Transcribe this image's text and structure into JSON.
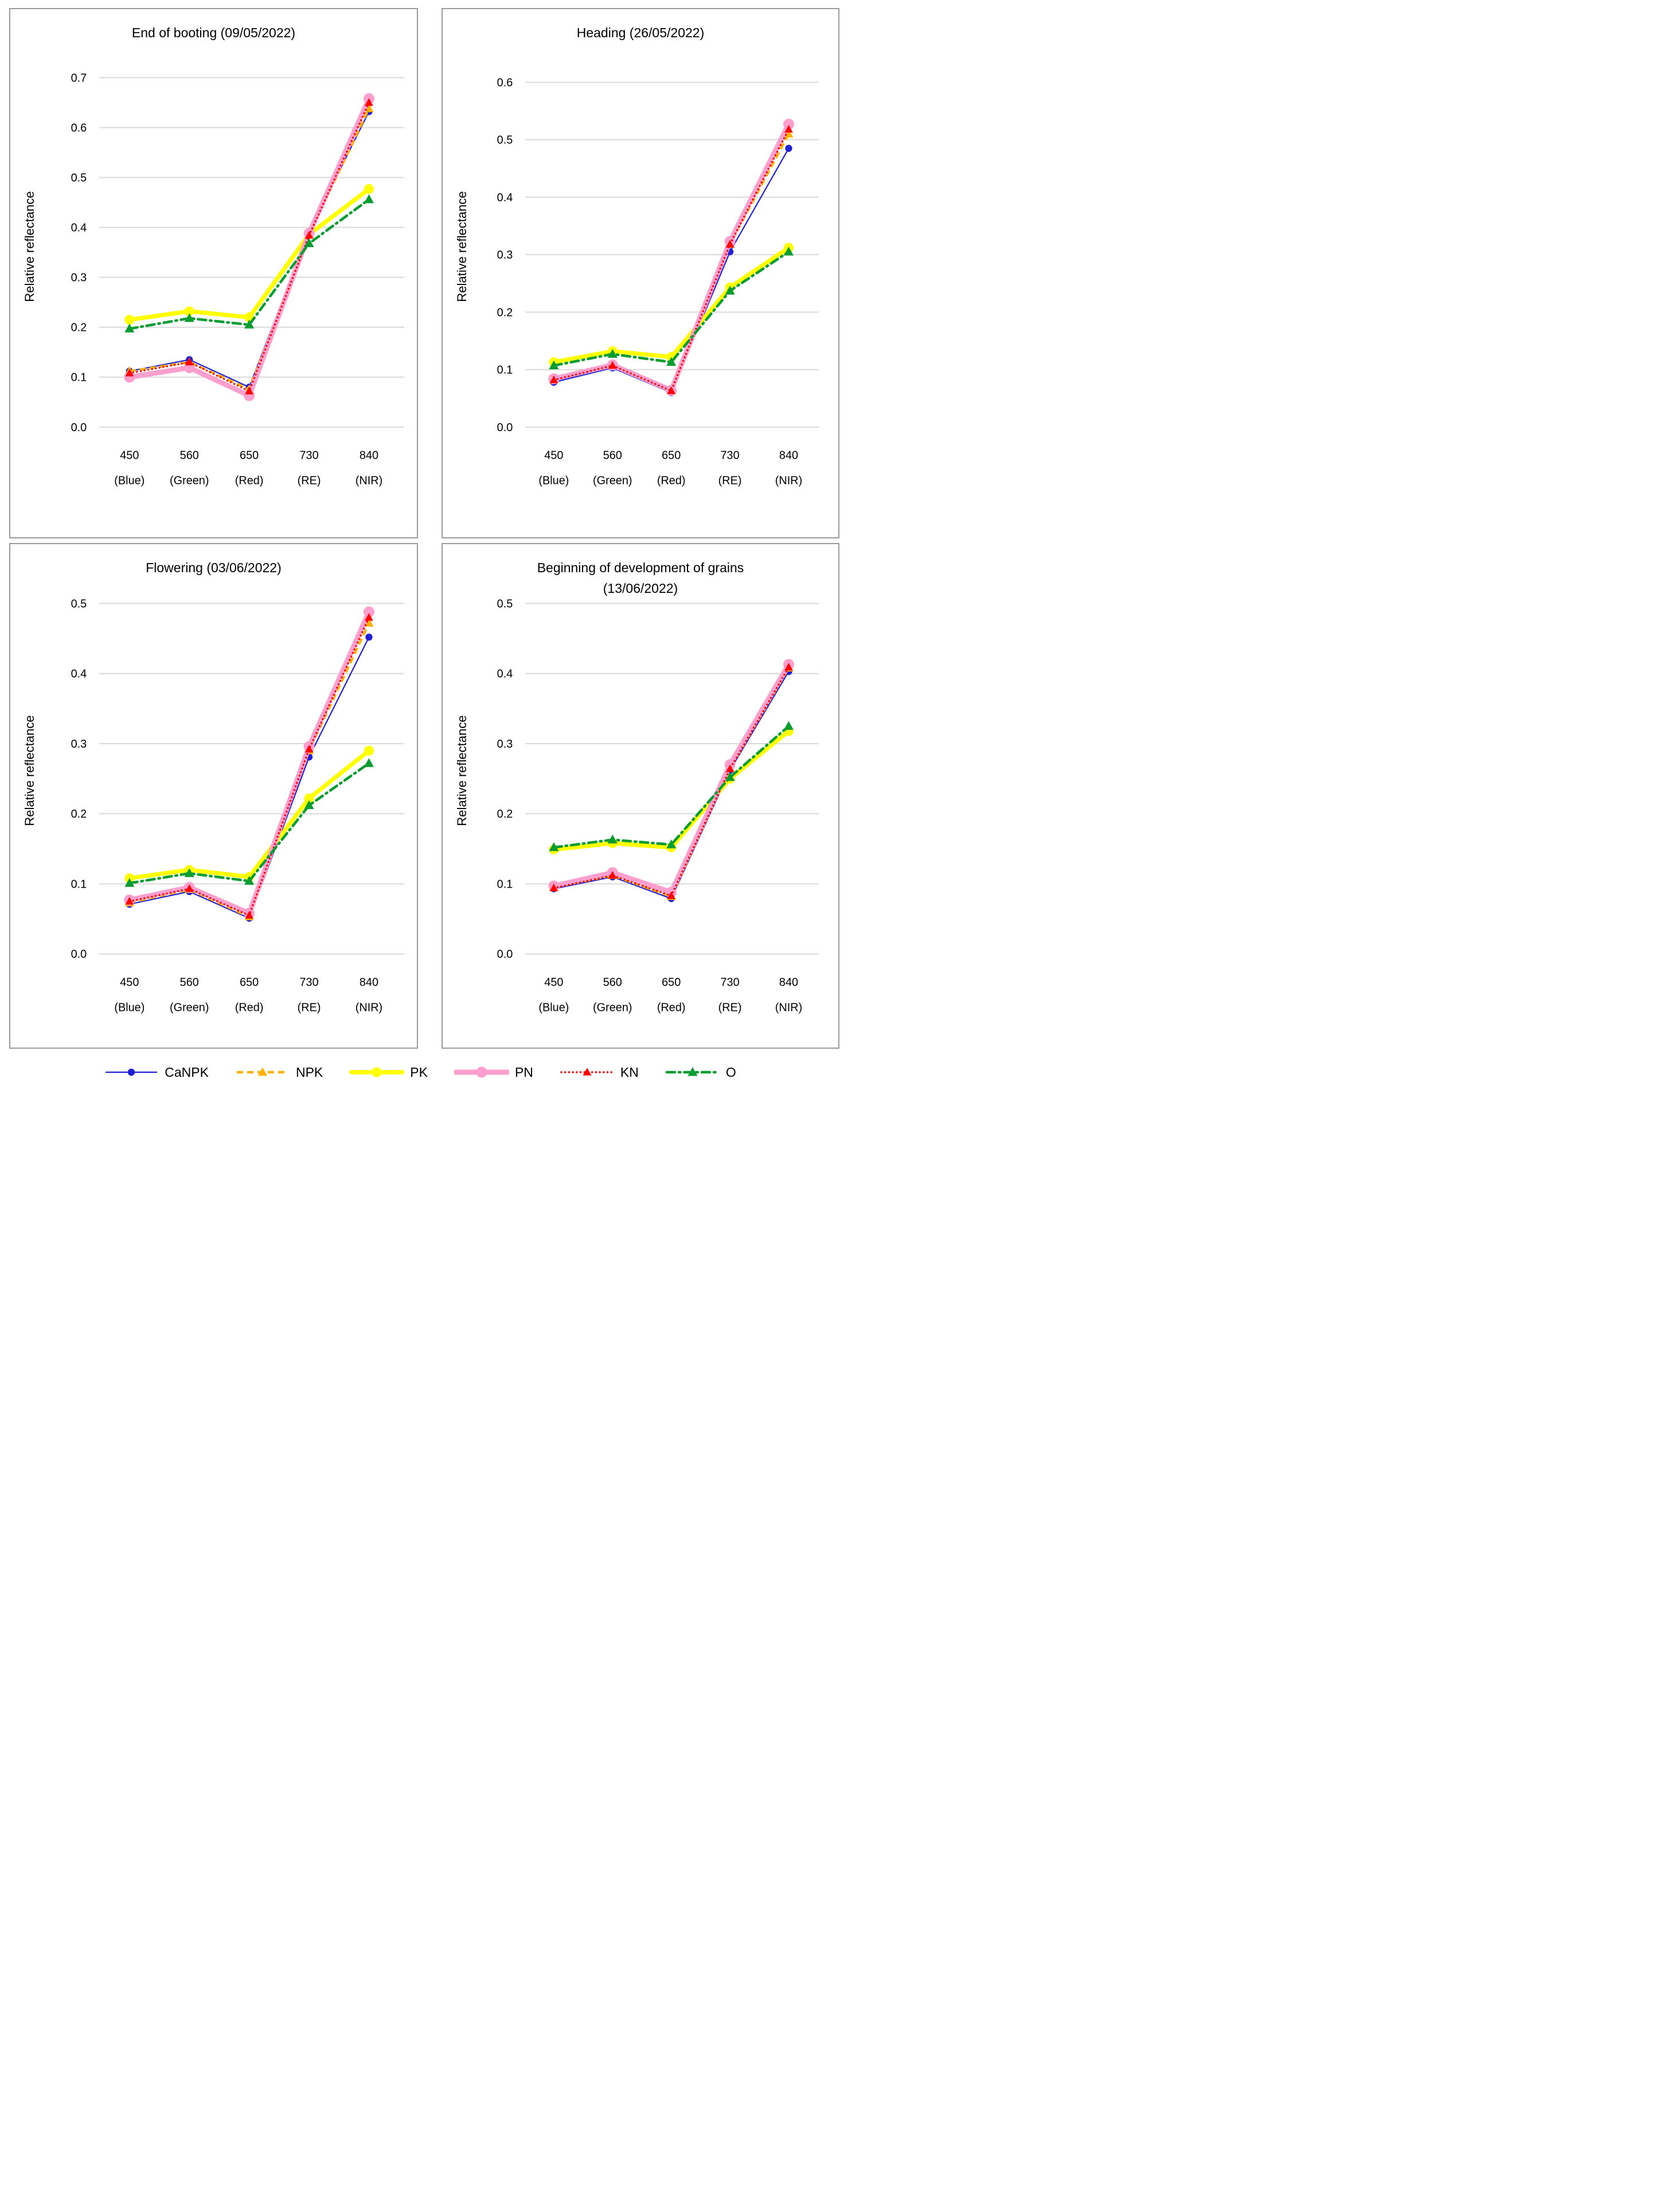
{
  "figure": {
    "background": "#ffffff",
    "grid_color": "#d9d9d9",
    "panel_border_color": "#9b9b9b"
  },
  "legend": {
    "position": "bottom-shared",
    "items": [
      {
        "label": "CaNPK",
        "color": "#1f1fd6",
        "line": "thin-solid",
        "marker": "circle"
      },
      {
        "label": "NPK",
        "color": "#ffb000",
        "line": "dashed",
        "marker": "triangle"
      },
      {
        "label": "PK",
        "color": "#ffff00",
        "line": "thick-solid",
        "marker": "circle"
      },
      {
        "label": "PN",
        "color": "#ff9fce",
        "line": "thick-solid",
        "marker": "circle"
      },
      {
        "label": "KN",
        "color": "#ff0000",
        "line": "dotted",
        "marker": "triangle"
      },
      {
        "label": "O",
        "color": "#089c31",
        "line": "dash-dot",
        "marker": "triangle"
      }
    ]
  },
  "chart_data": [
    {
      "type": "line",
      "title": "End of booting (09/05/2022)",
      "subtitle": "",
      "ylabel": "Relative reflectance",
      "xlabel": "",
      "ylim": [
        0.0,
        0.7
      ],
      "grid": true,
      "yticks": [
        "0.0",
        "0.1",
        "0.2",
        "0.3",
        "0.4",
        "0.5",
        "0.6",
        "0.7"
      ],
      "categories": [
        {
          "value": "450",
          "band": "(Blue)"
        },
        {
          "value": "560",
          "band": "(Green)"
        },
        {
          "value": "650",
          "band": "(Red)"
        },
        {
          "value": "730",
          "band": "(RE)"
        },
        {
          "value": "840",
          "band": "(NIR)"
        }
      ],
      "series": [
        {
          "name": "CaNPK",
          "values": [
            0.112,
            0.135,
            0.08,
            0.392,
            0.632
          ]
        },
        {
          "name": "NPK",
          "values": [
            0.112,
            0.13,
            0.076,
            0.386,
            0.638
          ]
        },
        {
          "name": "PK",
          "values": [
            0.215,
            0.232,
            0.22,
            0.386,
            0.477
          ]
        },
        {
          "name": "PN",
          "values": [
            0.1,
            0.119,
            0.063,
            0.388,
            0.658
          ]
        },
        {
          "name": "KN",
          "values": [
            0.108,
            0.13,
            0.072,
            0.384,
            0.65
          ]
        },
        {
          "name": "O",
          "values": [
            0.197,
            0.218,
            0.205,
            0.368,
            0.456
          ]
        }
      ]
    },
    {
      "type": "line",
      "title": "Heading (26/05/2022)",
      "subtitle": "",
      "ylabel": "Relative reflectance",
      "xlabel": "",
      "ylim": [
        0.0,
        0.6
      ],
      "grid": true,
      "yticks": [
        "0.0",
        "0.1",
        "0.2",
        "0.3",
        "0.4",
        "0.5",
        "0.6"
      ],
      "categories": [
        {
          "value": "450",
          "band": "(Blue)"
        },
        {
          "value": "560",
          "band": "(Green)"
        },
        {
          "value": "650",
          "band": "(Red)"
        },
        {
          "value": "730",
          "band": "(RE)"
        },
        {
          "value": "840",
          "band": "(NIR)"
        }
      ],
      "series": [
        {
          "name": "CaNPK",
          "values": [
            0.078,
            0.103,
            0.06,
            0.305,
            0.485
          ]
        },
        {
          "name": "NPK",
          "values": [
            0.082,
            0.107,
            0.063,
            0.318,
            0.51
          ]
        },
        {
          "name": "PK",
          "values": [
            0.113,
            0.132,
            0.122,
            0.243,
            0.312
          ]
        },
        {
          "name": "PN",
          "values": [
            0.084,
            0.108,
            0.064,
            0.323,
            0.527
          ]
        },
        {
          "name": "KN",
          "values": [
            0.082,
            0.107,
            0.063,
            0.318,
            0.518
          ]
        },
        {
          "name": "O",
          "values": [
            0.107,
            0.127,
            0.113,
            0.237,
            0.305
          ]
        }
      ]
    },
    {
      "type": "line",
      "title": "Flowering (03/06/2022)",
      "subtitle": "",
      "ylabel": "Relative reflectance",
      "xlabel": "",
      "ylim": [
        0.0,
        0.5
      ],
      "grid": true,
      "yticks": [
        "0.0",
        "0.1",
        "0.2",
        "0.3",
        "0.4",
        "0.5"
      ],
      "categories": [
        {
          "value": "450",
          "band": "(Blue)"
        },
        {
          "value": "560",
          "band": "(Green)"
        },
        {
          "value": "650",
          "band": "(Red)"
        },
        {
          "value": "730",
          "band": "(RE)"
        },
        {
          "value": "840",
          "band": "(NIR)"
        }
      ],
      "series": [
        {
          "name": "CaNPK",
          "values": [
            0.071,
            0.089,
            0.051,
            0.281,
            0.452
          ]
        },
        {
          "name": "NPK",
          "values": [
            0.073,
            0.092,
            0.053,
            0.29,
            0.472
          ]
        },
        {
          "name": "PK",
          "values": [
            0.108,
            0.12,
            0.11,
            0.222,
            0.29
          ]
        },
        {
          "name": "PN",
          "values": [
            0.077,
            0.095,
            0.058,
            0.296,
            0.488
          ]
        },
        {
          "name": "KN",
          "values": [
            0.075,
            0.093,
            0.055,
            0.292,
            0.48
          ]
        },
        {
          "name": "O",
          "values": [
            0.101,
            0.115,
            0.104,
            0.212,
            0.272
          ]
        }
      ]
    },
    {
      "type": "line",
      "title": "Beginning of development of grains",
      "subtitle": "(13/06/2022)",
      "ylabel": "Relative reflectance",
      "xlabel": "",
      "ylim": [
        0.0,
        0.5
      ],
      "grid": true,
      "yticks": [
        "0.0",
        "0.1",
        "0.2",
        "0.3",
        "0.4",
        "0.5"
      ],
      "categories": [
        {
          "value": "450",
          "band": "(Blue)"
        },
        {
          "value": "560",
          "band": "(Green)"
        },
        {
          "value": "650",
          "band": "(Red)"
        },
        {
          "value": "730",
          "band": "(RE)"
        },
        {
          "value": "840",
          "band": "(NIR)"
        }
      ],
      "series": [
        {
          "name": "CaNPK",
          "values": [
            0.093,
            0.11,
            0.079,
            0.262,
            0.403
          ]
        },
        {
          "name": "NPK",
          "values": [
            0.095,
            0.112,
            0.082,
            0.265,
            0.408
          ]
        },
        {
          "name": "PK",
          "values": [
            0.149,
            0.158,
            0.152,
            0.25,
            0.318
          ]
        },
        {
          "name": "PN",
          "values": [
            0.097,
            0.116,
            0.088,
            0.27,
            0.413
          ]
        },
        {
          "name": "KN",
          "values": [
            0.094,
            0.112,
            0.083,
            0.264,
            0.409
          ]
        },
        {
          "name": "O",
          "values": [
            0.152,
            0.163,
            0.156,
            0.252,
            0.325
          ]
        }
      ]
    }
  ]
}
